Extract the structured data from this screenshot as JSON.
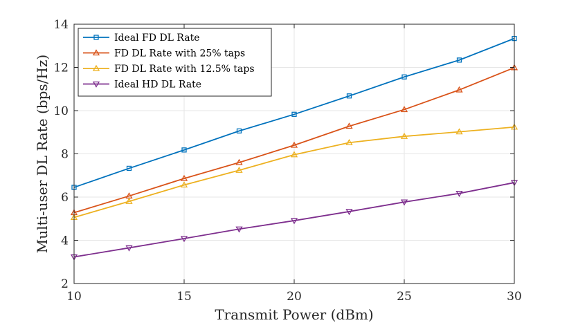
{
  "chart_data": {
    "type": "line",
    "title": "",
    "xlabel": "Transmit Power (dBm)",
    "ylabel": "Multi-user DL Rate (bps/Hz)",
    "xlim": [
      10,
      30
    ],
    "ylim": [
      2,
      14
    ],
    "xticks": [
      10,
      15,
      20,
      25,
      30
    ],
    "yticks": [
      2,
      4,
      6,
      8,
      10,
      12,
      14
    ],
    "grid": true,
    "legend_position": "top-left",
    "x": [
      10,
      12.5,
      15,
      17.5,
      20,
      22.5,
      25,
      27.5,
      30
    ],
    "series": [
      {
        "name": "Ideal FD DL Rate",
        "color": "#0072BD",
        "marker": "square",
        "values": [
          6.45,
          7.33,
          8.18,
          9.06,
          9.83,
          10.68,
          11.56,
          12.34,
          13.34
        ]
      },
      {
        "name": "FD DL Rate with 25% taps",
        "color": "#D95319",
        "marker": "triangle-up",
        "values": [
          5.28,
          6.05,
          6.86,
          7.6,
          8.4,
          9.28,
          10.05,
          10.96,
          11.99
        ]
      },
      {
        "name": "FD DL Rate with 12.5% taps",
        "color": "#EDB120",
        "marker": "triangle-up",
        "values": [
          5.06,
          5.8,
          6.56,
          7.24,
          7.96,
          8.52,
          8.81,
          9.02,
          9.24
        ]
      },
      {
        "name": "Ideal HD DL Rate",
        "color": "#7E2F8E",
        "marker": "triangle-down",
        "values": [
          3.23,
          3.65,
          4.08,
          4.52,
          4.91,
          5.33,
          5.77,
          6.17,
          6.67
        ]
      }
    ]
  }
}
